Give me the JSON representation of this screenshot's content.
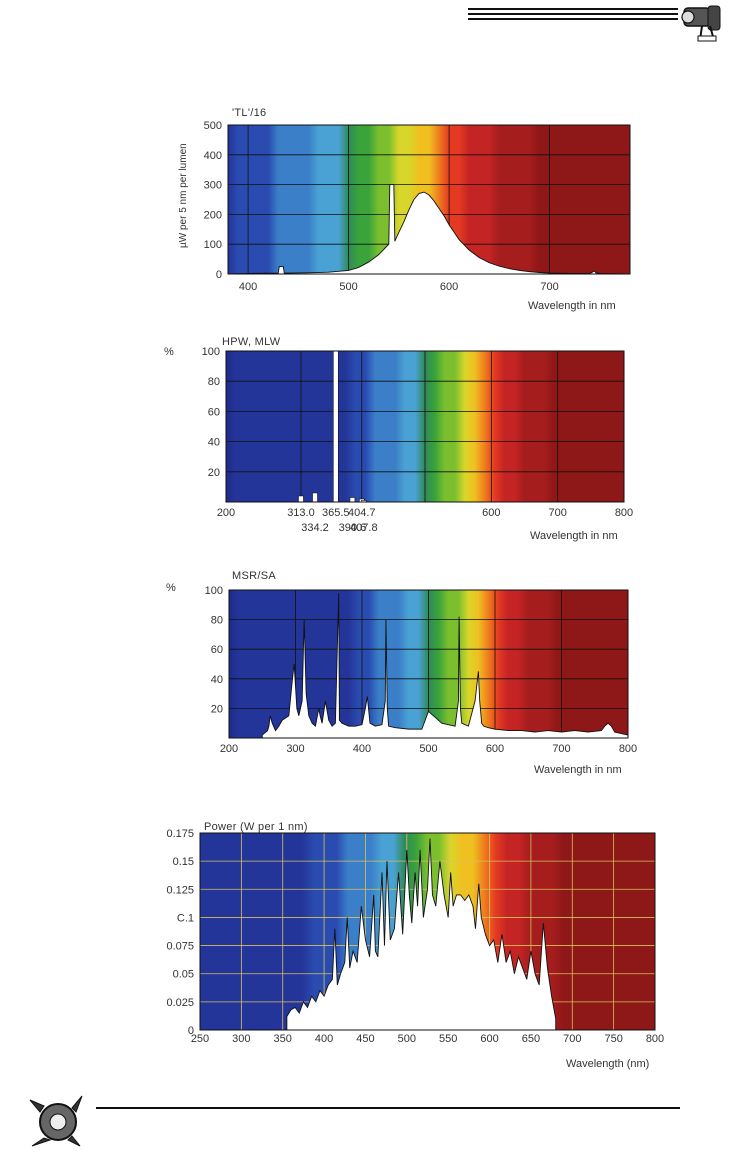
{
  "chart_data": [
    {
      "id": "c1",
      "type": "area",
      "title": "'TL'/16",
      "ylabel": "µW per 5 nm per lumen",
      "xlabel": "Wavelength in nm",
      "xlim": [
        380,
        780
      ],
      "ylim": [
        0,
        500
      ],
      "xticks": [
        400,
        500,
        600,
        700
      ],
      "xtick_labels": [
        "400",
        "500",
        "600",
        "700"
      ],
      "yticks": [
        0,
        100,
        200,
        300,
        400,
        500
      ],
      "ytick_labels": [
        "0",
        "100",
        "200",
        "300",
        "400",
        "500"
      ],
      "grid": true,
      "series": [
        {
          "x": [
            380,
            400,
            430,
            431,
            435,
            436,
            440,
            460,
            480,
            500,
            510,
            520,
            530,
            540,
            541,
            545,
            546,
            550,
            555,
            560,
            565,
            570,
            575,
            580,
            585,
            590,
            595,
            600,
            605,
            610,
            620,
            630,
            640,
            650,
            660,
            670,
            680,
            690,
            700,
            720,
            740,
            745,
            746,
            750,
            760,
            780
          ],
          "y": [
            0,
            2,
            3,
            25,
            25,
            3,
            3,
            4,
            6,
            12,
            22,
            40,
            65,
            100,
            300,
            300,
            110,
            140,
            175,
            215,
            250,
            270,
            275,
            265,
            245,
            220,
            195,
            165,
            140,
            115,
            80,
            55,
            38,
            26,
            18,
            12,
            8,
            5,
            3,
            2,
            2,
            10,
            4,
            2,
            1,
            0
          ]
        }
      ]
    },
    {
      "id": "c2",
      "type": "bar",
      "title": "HPW, MLW",
      "ylabel": "%",
      "xlabel": "Wavelength in nm",
      "xlim": [
        200,
        800
      ],
      "ylim": [
        0,
        100
      ],
      "xticks": [
        200,
        313,
        365.5,
        404.7,
        600,
        700,
        800
      ],
      "xtick_labels": [
        "200",
        "313.0",
        "365.5",
        "404.7",
        "600",
        "700",
        "800"
      ],
      "xticks_lower": [
        334.2,
        390.6,
        407.8
      ],
      "xtick_labels_lower": [
        "334.2",
        "390.6",
        "407.8"
      ],
      "yticks": [
        20,
        40,
        60,
        80,
        100
      ],
      "ytick_labels": [
        "20",
        "40",
        "60",
        "80",
        "100"
      ],
      "grid": true,
      "lines": [
        {
          "x": 313.0,
          "y": 4
        },
        {
          "x": 334.2,
          "y": 6
        },
        {
          "x": 365.5,
          "y": 100
        },
        {
          "x": 390.6,
          "y": 3
        },
        {
          "x": 404.7,
          "y": 2
        },
        {
          "x": 407.8,
          "y": 1
        }
      ]
    },
    {
      "id": "c3",
      "type": "area",
      "title": "MSR/SA",
      "ylabel": "%",
      "xlabel": "Wavelength in nm",
      "xlim": [
        200,
        800
      ],
      "ylim": [
        0,
        100
      ],
      "xticks": [
        200,
        300,
        400,
        500,
        600,
        700,
        800
      ],
      "xtick_labels": [
        "200",
        "300",
        "400",
        "500",
        "600",
        "700",
        "800"
      ],
      "yticks": [
        20,
        40,
        60,
        80,
        100
      ],
      "ytick_labels": [
        "20",
        "40",
        "60",
        "80",
        "100"
      ],
      "grid": true,
      "series": [
        {
          "x": [
            250,
            258,
            260,
            262,
            265,
            270,
            275,
            280,
            290,
            295,
            298,
            302,
            305,
            310,
            313,
            316,
            320,
            325,
            330,
            335,
            337,
            340,
            345,
            350,
            355,
            360,
            365,
            366,
            370,
            375,
            380,
            390,
            400,
            405,
            408,
            412,
            420,
            430,
            435,
            436,
            438,
            440,
            450,
            470,
            490,
            500,
            520,
            540,
            545,
            546,
            548,
            550,
            560,
            570,
            575,
            577,
            580,
            583,
            590,
            600,
            620,
            640,
            660,
            680,
            700,
            720,
            740,
            760,
            765,
            770,
            775,
            780,
            790,
            800
          ],
          "y": [
            2,
            5,
            8,
            15,
            10,
            5,
            8,
            12,
            15,
            38,
            50,
            20,
            15,
            25,
            80,
            30,
            15,
            10,
            8,
            20,
            15,
            10,
            25,
            12,
            8,
            10,
            98,
            12,
            10,
            9,
            8,
            8,
            9,
            20,
            28,
            10,
            8,
            9,
            25,
            80,
            20,
            8,
            7,
            6,
            6,
            18,
            10,
            8,
            25,
            82,
            20,
            10,
            8,
            25,
            45,
            25,
            10,
            8,
            7,
            6,
            5,
            5,
            4,
            5,
            4,
            5,
            4,
            5,
            8,
            10,
            8,
            4,
            3,
            2
          ]
        }
      ]
    },
    {
      "id": "c4",
      "type": "area",
      "title": "Power (W per 1 nm)",
      "ylabel": "",
      "xlabel": "Wavelength (nm)",
      "xlim": [
        250,
        800
      ],
      "ylim": [
        0,
        0.175
      ],
      "xticks": [
        250,
        300,
        350,
        400,
        450,
        500,
        550,
        600,
        650,
        700,
        750,
        800
      ],
      "xtick_labels": [
        "250",
        "300",
        "350",
        "400",
        "450",
        "500",
        "550",
        "600",
        "650",
        "700",
        "750",
        "800"
      ],
      "yticks": [
        0,
        0.025,
        0.05,
        0.075,
        0.1,
        0.125,
        0.15,
        0.175
      ],
      "ytick_labels": [
        "0",
        "0.025",
        "0.05",
        "0.075",
        "C.1",
        "0.125",
        "0.15",
        "0.175"
      ],
      "grid": true,
      "series": [
        {
          "x": [
            355,
            360,
            365,
            370,
            375,
            380,
            385,
            390,
            395,
            400,
            405,
            410,
            413,
            416,
            420,
            425,
            428,
            431,
            435,
            440,
            445,
            450,
            455,
            460,
            462,
            465,
            470,
            473,
            476,
            480,
            485,
            490,
            495,
            500,
            503,
            506,
            510,
            513,
            516,
            520,
            525,
            528,
            531,
            535,
            540,
            545,
            550,
            553,
            556,
            560,
            565,
            570,
            575,
            580,
            583,
            587,
            590,
            595,
            600,
            605,
            610,
            615,
            620,
            625,
            630,
            635,
            640,
            645,
            650,
            655,
            660,
            665,
            670,
            675,
            680
          ],
          "y": [
            0.012,
            0.018,
            0.02,
            0.015,
            0.025,
            0.02,
            0.03,
            0.025,
            0.035,
            0.03,
            0.04,
            0.045,
            0.09,
            0.04,
            0.05,
            0.06,
            0.1,
            0.055,
            0.07,
            0.06,
            0.11,
            0.08,
            0.065,
            0.12,
            0.07,
            0.065,
            0.14,
            0.075,
            0.15,
            0.08,
            0.09,
            0.14,
            0.085,
            0.16,
            0.12,
            0.095,
            0.14,
            0.11,
            0.16,
            0.1,
            0.125,
            0.17,
            0.12,
            0.11,
            0.15,
            0.12,
            0.1,
            0.14,
            0.11,
            0.12,
            0.12,
            0.115,
            0.12,
            0.11,
            0.09,
            0.13,
            0.1,
            0.085,
            0.075,
            0.08,
            0.06,
            0.085,
            0.06,
            0.07,
            0.05,
            0.065,
            0.055,
            0.045,
            0.07,
            0.05,
            0.04,
            0.095,
            0.055,
            0.03,
            0.01
          ]
        }
      ]
    }
  ]
}
